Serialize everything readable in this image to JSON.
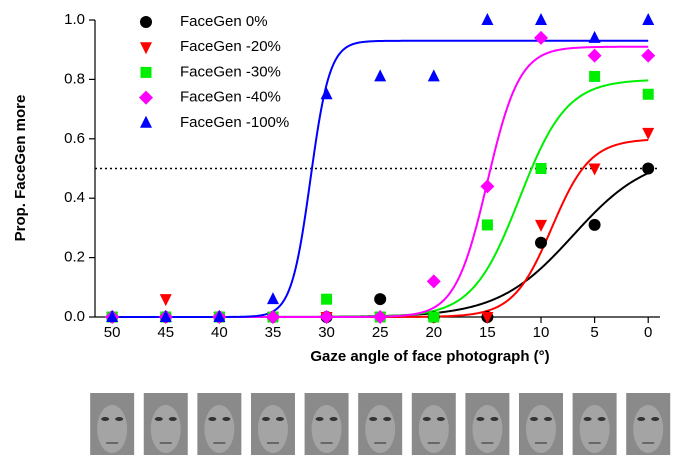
{
  "chart_data": {
    "type": "scatter",
    "xlabel": "Gaze angle of face photograph (°)",
    "ylabel": "Prop. FaceGen more",
    "x": [
      50,
      45,
      40,
      35,
      30,
      25,
      20,
      15,
      10,
      5,
      0
    ],
    "xlim": [
      51.6,
      -1.1
    ],
    "xticks": [
      50,
      45,
      40,
      35,
      30,
      25,
      20,
      15,
      10,
      5,
      0
    ],
    "ylim": [
      0,
      1
    ],
    "yticks": [
      {
        "value": 0,
        "label": "0.0"
      },
      0.2,
      0.4,
      0.6,
      0.8,
      {
        "value": 1,
        "label": "1.0"
      }
    ],
    "reference_line": 0.5,
    "legend": "upper left",
    "series": [
      {
        "name": "FaceGen 0%",
        "color": "#000000",
        "marker": "circle",
        "values": [
          0,
          0,
          0,
          0,
          0,
          0.06,
          0,
          0,
          0.25,
          0.31,
          0.5
        ],
        "fit": {
          "top": 0.55,
          "mid": 7,
          "slope": 3.5
        }
      },
      {
        "name": "FaceGen -20%",
        "color": "#ff0000",
        "marker": "triangle-down",
        "values": [
          0,
          0.06,
          0,
          0,
          0,
          0,
          0,
          0,
          0.31,
          0.5,
          0.62
        ],
        "fit": {
          "top": 0.6,
          "mid": 9,
          "slope": 1.8
        }
      },
      {
        "name": "FaceGen -30%",
        "color": "#00ee00",
        "marker": "square",
        "values": [
          0,
          0,
          0,
          0,
          0.06,
          0,
          0,
          0.31,
          0.5,
          0.81,
          0.75
        ],
        "fit": {
          "top": 0.8,
          "mid": 12,
          "slope": 2.2
        }
      },
      {
        "name": "FaceGen -40%",
        "color": "#ff00ff",
        "marker": "diamond",
        "values": [
          0,
          0,
          0,
          0,
          0,
          0,
          0.12,
          0.44,
          0.94,
          0.88,
          0.88
        ],
        "fit": {
          "top": 0.91,
          "mid": 15,
          "slope": 1.5
        }
      },
      {
        "name": "FaceGen -100%",
        "color": "#0000ff",
        "marker": "triangle-up",
        "values": [
          0,
          0,
          0,
          0.06,
          0.75,
          0.81,
          0.81,
          1,
          1,
          0.94,
          1
        ],
        "fit": {
          "top": 0.93,
          "mid": 31.5,
          "slope": 0.9
        }
      }
    ]
  }
}
